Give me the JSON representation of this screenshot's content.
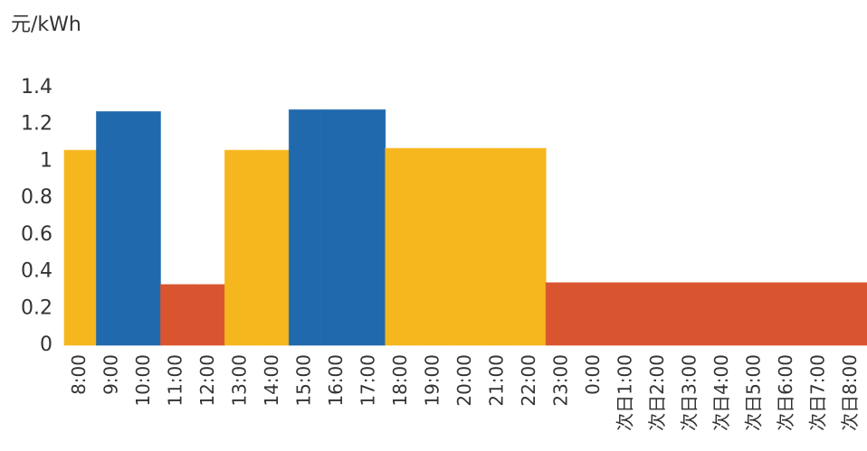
{
  "chart_data": {
    "type": "bar",
    "y_axis_label": "元/kWh",
    "categories": [
      "8:00",
      "9:00",
      "10:00",
      "11:00",
      "12:00",
      "13:00",
      "14:00",
      "15:00",
      "16:00",
      "17:00",
      "18:00",
      "19:00",
      "20:00",
      "21:00",
      "22:00",
      "23:00",
      "0:00",
      "次日1:00",
      "次日2:00",
      "次日3:00",
      "次日4:00",
      "次日5:00",
      "次日6:00",
      "次日7:00",
      "次日8:00"
    ],
    "values": [
      1.06,
      1.27,
      1.27,
      0.33,
      0.33,
      1.06,
      1.06,
      1.28,
      1.28,
      1.28,
      1.07,
      1.07,
      1.07,
      1.07,
      1.07,
      0.34,
      0.34,
      0.34,
      0.34,
      0.34,
      0.34,
      0.34,
      0.34,
      0.34,
      0.34
    ],
    "colors": [
      "#f6b61e",
      "#2169ad",
      "#2169ad",
      "#d95530",
      "#d95530",
      "#f6b61e",
      "#f6b61e",
      "#2169ad",
      "#2169ad",
      "#2169ad",
      "#f6b61e",
      "#f6b61e",
      "#f6b61e",
      "#f6b61e",
      "#f6b61e",
      "#d95530",
      "#d95530",
      "#d95530",
      "#d95530",
      "#d95530",
      "#d95530",
      "#d95530",
      "#d95530",
      "#d95530",
      "#d95530"
    ],
    "ylim": [
      0,
      1.4
    ],
    "yticks": [
      0,
      0.2,
      0.4,
      0.6,
      0.8,
      1,
      1.2,
      1.4
    ],
    "grid": false
  }
}
